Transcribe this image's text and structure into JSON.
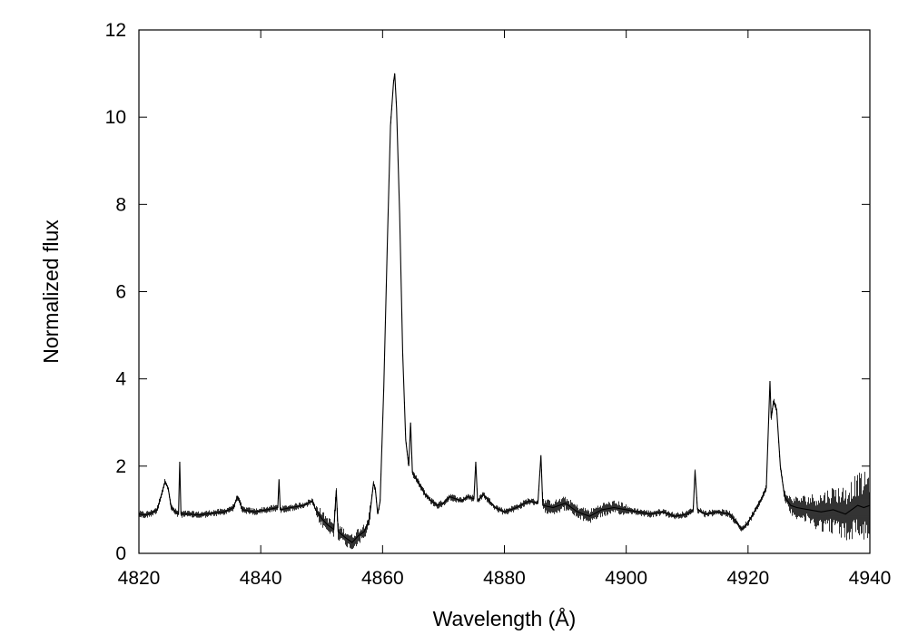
{
  "chart_data": {
    "type": "line",
    "title": "",
    "xlabel": "Wavelength (Å)",
    "ylabel": "Normalized flux",
    "xlim": [
      4820,
      4940
    ],
    "ylim": [
      0,
      12
    ],
    "xticks": [
      4820,
      4840,
      4860,
      4880,
      4900,
      4920,
      4940
    ],
    "yticks": [
      0,
      2,
      4,
      6,
      8,
      10,
      12
    ],
    "grid": false,
    "legend": "none",
    "line_color": "#000000",
    "series": [
      {
        "name": "",
        "points": [
          [
            4820.0,
            0.9
          ],
          [
            4821.0,
            0.88
          ],
          [
            4822.0,
            0.92
          ],
          [
            4823.0,
            1.0
          ],
          [
            4823.7,
            1.35
          ],
          [
            4824.3,
            1.65
          ],
          [
            4824.8,
            1.5
          ],
          [
            4825.3,
            1.05
          ],
          [
            4826.0,
            0.95
          ],
          [
            4826.5,
            0.9
          ],
          [
            4826.7,
            2.1
          ],
          [
            4826.9,
            0.9
          ],
          [
            4828.0,
            0.9
          ],
          [
            4830.0,
            0.88
          ],
          [
            4832.0,
            0.92
          ],
          [
            4834.0,
            0.95
          ],
          [
            4835.5,
            1.05
          ],
          [
            4836.2,
            1.3
          ],
          [
            4837.0,
            1.0
          ],
          [
            4839.0,
            0.95
          ],
          [
            4841.0,
            1.0
          ],
          [
            4842.8,
            1.05
          ],
          [
            4843.0,
            1.7
          ],
          [
            4843.2,
            1.0
          ],
          [
            4845.0,
            1.05
          ],
          [
            4847.0,
            1.1
          ],
          [
            4848.5,
            1.2
          ],
          [
            4849.0,
            1.0
          ],
          [
            4850.0,
            0.8
          ],
          [
            4851.0,
            0.65
          ],
          [
            4852.0,
            0.55
          ],
          [
            4852.4,
            1.45
          ],
          [
            4852.7,
            0.5
          ],
          [
            4854.0,
            0.35
          ],
          [
            4855.0,
            0.25
          ],
          [
            4856.0,
            0.4
          ],
          [
            4857.0,
            0.5
          ],
          [
            4857.8,
            0.75
          ],
          [
            4858.5,
            1.6
          ],
          [
            4858.8,
            1.5
          ],
          [
            4859.2,
            0.9
          ],
          [
            4859.6,
            1.2
          ],
          [
            4860.2,
            3.8
          ],
          [
            4860.8,
            7.2
          ],
          [
            4861.3,
            9.8
          ],
          [
            4861.8,
            10.8
          ],
          [
            4862.0,
            11.0
          ],
          [
            4862.3,
            10.2
          ],
          [
            4862.8,
            7.8
          ],
          [
            4863.3,
            4.6
          ],
          [
            4863.8,
            2.6
          ],
          [
            4864.3,
            2.0
          ],
          [
            4864.6,
            3.0
          ],
          [
            4864.9,
            1.85
          ],
          [
            4866.0,
            1.6
          ],
          [
            4867.0,
            1.35
          ],
          [
            4868.0,
            1.2
          ],
          [
            4869.0,
            1.1
          ],
          [
            4870.0,
            1.15
          ],
          [
            4871.0,
            1.3
          ],
          [
            4872.0,
            1.25
          ],
          [
            4873.0,
            1.2
          ],
          [
            4874.0,
            1.3
          ],
          [
            4875.0,
            1.25
          ],
          [
            4875.3,
            2.1
          ],
          [
            4875.6,
            1.2
          ],
          [
            4876.5,
            1.35
          ],
          [
            4877.5,
            1.2
          ],
          [
            4878.5,
            1.05
          ],
          [
            4880.0,
            0.95
          ],
          [
            4882.0,
            1.05
          ],
          [
            4884.0,
            1.2
          ],
          [
            4885.5,
            1.15
          ],
          [
            4886.0,
            2.25
          ],
          [
            4886.3,
            1.1
          ],
          [
            4888.0,
            1.05
          ],
          [
            4890.0,
            1.15
          ],
          [
            4892.0,
            0.95
          ],
          [
            4894.0,
            0.85
          ],
          [
            4896.0,
            1.0
          ],
          [
            4898.0,
            1.05
          ],
          [
            4900.0,
            1.0
          ],
          [
            4902.0,
            0.95
          ],
          [
            4904.0,
            0.9
          ],
          [
            4906.0,
            0.95
          ],
          [
            4908.0,
            0.85
          ],
          [
            4910.0,
            0.9
          ],
          [
            4911.0,
            1.0
          ],
          [
            4911.3,
            1.9
          ],
          [
            4911.7,
            1.0
          ],
          [
            4913.0,
            0.9
          ],
          [
            4915.0,
            0.95
          ],
          [
            4917.0,
            0.9
          ],
          [
            4919.0,
            0.55
          ],
          [
            4920.0,
            0.7
          ],
          [
            4921.0,
            0.95
          ],
          [
            4922.0,
            1.2
          ],
          [
            4923.0,
            1.5
          ],
          [
            4923.6,
            3.95
          ],
          [
            4923.8,
            3.1
          ],
          [
            4924.2,
            3.5
          ],
          [
            4924.7,
            3.3
          ],
          [
            4925.3,
            2.0
          ],
          [
            4926.0,
            1.3
          ],
          [
            4927.0,
            1.1
          ],
          [
            4928.0,
            1.05
          ],
          [
            4930.0,
            1.0
          ],
          [
            4932.0,
            0.95
          ],
          [
            4934.0,
            1.0
          ],
          [
            4936.0,
            0.9
          ],
          [
            4938.0,
            1.1
          ],
          [
            4939.0,
            1.05
          ],
          [
            4940.0,
            1.1
          ]
        ]
      }
    ]
  }
}
